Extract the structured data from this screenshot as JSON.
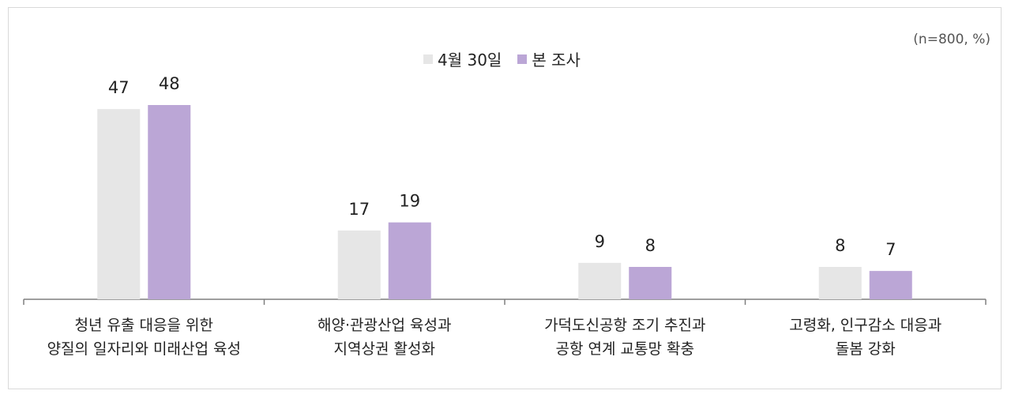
{
  "chart_data": {
    "type": "bar",
    "note": "(n=800, %)",
    "categories": [
      [
        "청년 유출 대응을 위한",
        "양질의 일자리와 미래산업 육성"
      ],
      [
        "해양·관광산업 육성과",
        "지역상권 활성화"
      ],
      [
        "가덕도신공항 조기 추진과",
        "공항 연계 교통망 확충"
      ],
      [
        "고령화, 인구감소 대응과",
        "돌봄 강화"
      ]
    ],
    "series": [
      {
        "name": "4월 30일",
        "color": "#e6e6e6",
        "values": [
          47,
          17,
          9,
          8
        ]
      },
      {
        "name": "본 조사",
        "color": "#bba6d6",
        "values": [
          48,
          19,
          8,
          7
        ]
      }
    ],
    "ylim": [
      0,
      50
    ],
    "grid": false,
    "legend_position": "top-center"
  }
}
